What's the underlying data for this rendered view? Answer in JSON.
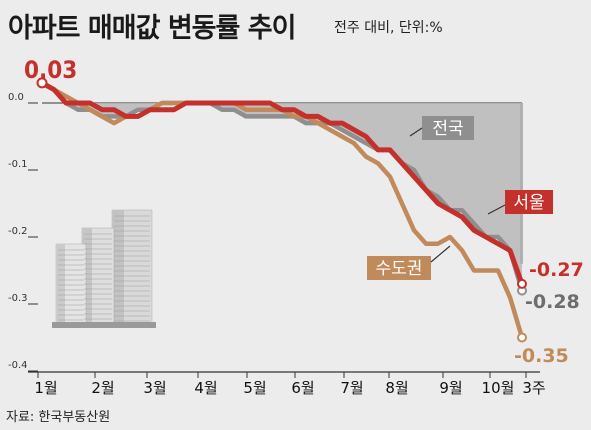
{
  "header": {
    "title": "아파트 매매값 변동률 추이",
    "unit_note": "전주 대비, 단위:%"
  },
  "footer": {
    "source": "자료: 한국부동산원"
  },
  "chart_data": {
    "type": "line",
    "ylim": [
      -0.4,
      0.03
    ],
    "y_ticks": [
      "0.0",
      "-0.1",
      "-0.2",
      "-0.3",
      "-0.4"
    ],
    "y_tick_values": [
      0.0,
      -0.1,
      -0.2,
      -0.3,
      -0.4
    ],
    "month_labels": [
      "1월",
      "2월",
      "3월",
      "4월",
      "5월",
      "6월",
      "7월",
      "8월",
      "9월",
      "10월",
      "3주"
    ],
    "grid": false,
    "series": [
      {
        "name": "전국",
        "color": "#8f8f8f",
        "fill": "#b8b8b8",
        "values": [
          0.03,
          0.02,
          0.0,
          -0.01,
          -0.01,
          -0.02,
          -0.02,
          -0.02,
          -0.01,
          -0.01,
          0.0,
          0.0,
          0.0,
          0.0,
          0.0,
          -0.01,
          -0.01,
          -0.02,
          -0.02,
          -0.02,
          -0.02,
          -0.02,
          -0.03,
          -0.03,
          -0.03,
          -0.04,
          -0.05,
          -0.06,
          -0.07,
          -0.07,
          -0.09,
          -0.1,
          -0.13,
          -0.14,
          -0.16,
          -0.16,
          -0.18,
          -0.2,
          -0.2,
          -0.22,
          -0.28
        ],
        "end_label": "-0.28"
      },
      {
        "name": "서울",
        "color": "#c4302b",
        "values": [
          0.03,
          0.02,
          0.0,
          0.0,
          0.0,
          -0.01,
          -0.01,
          -0.02,
          -0.02,
          -0.01,
          -0.01,
          -0.01,
          0.0,
          0.0,
          0.0,
          0.0,
          0.0,
          0.0,
          0.0,
          0.0,
          -0.01,
          -0.01,
          -0.02,
          -0.02,
          -0.03,
          -0.03,
          -0.04,
          -0.05,
          -0.07,
          -0.07,
          -0.09,
          -0.11,
          -0.13,
          -0.15,
          -0.16,
          -0.17,
          -0.19,
          -0.2,
          -0.21,
          -0.22,
          -0.27
        ],
        "end_label": "-0.27"
      },
      {
        "name": "수도권",
        "color": "#c08a5a",
        "values": [
          0.03,
          0.02,
          0.01,
          0.0,
          -0.01,
          -0.02,
          -0.03,
          -0.02,
          -0.02,
          -0.01,
          0.0,
          0.0,
          0.0,
          0.0,
          0.0,
          0.0,
          0.0,
          -0.01,
          -0.01,
          -0.01,
          -0.01,
          -0.02,
          -0.02,
          -0.03,
          -0.04,
          -0.05,
          -0.06,
          -0.08,
          -0.09,
          -0.11,
          -0.15,
          -0.19,
          -0.21,
          -0.21,
          -0.2,
          -0.22,
          -0.25,
          -0.25,
          -0.25,
          -0.29,
          -0.35
        ],
        "end_label": "-0.35"
      }
    ],
    "annotations": {
      "start_value": "0.03"
    }
  }
}
